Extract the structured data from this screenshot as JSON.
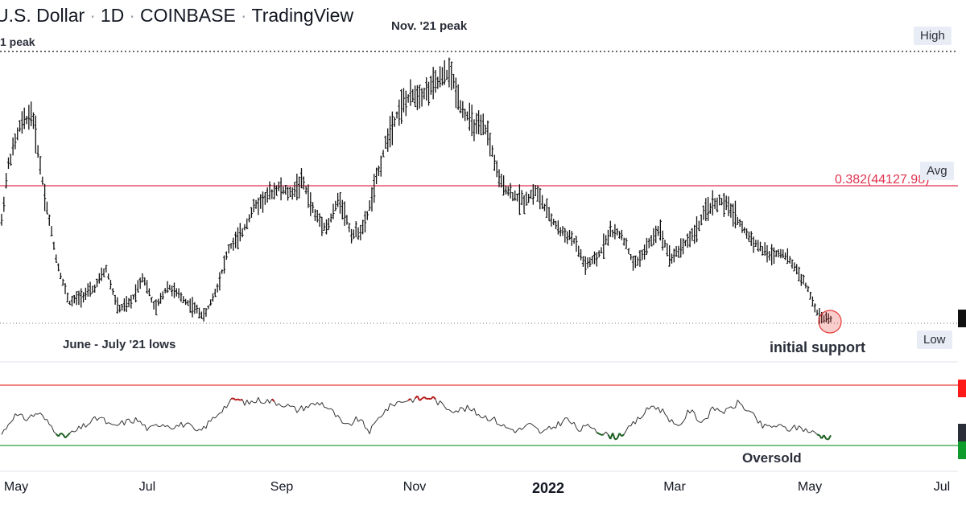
{
  "header": {
    "symbol": "U.S. Dollar",
    "interval": "1D",
    "exchange": "COINBASE",
    "brand": "TradingView"
  },
  "badges": {
    "high": "High",
    "avg": "Avg",
    "low": "Low"
  },
  "annotations": {
    "left_peak": "1 peak",
    "nov_peak": "Nov. '21 peak",
    "lows": "June - July '21 lows",
    "initial_support": "initial support",
    "oversold": "Oversold",
    "fib": "0.382(44127.98)"
  },
  "x_axis_labels": [
    "May",
    "Jul",
    "Sep",
    "Nov",
    "2022",
    "Mar",
    "May",
    "Jul"
  ],
  "colors": {
    "fib_line": "#e0334f",
    "overbought_line": "#e53935",
    "oversold_line": "#2e9e3a",
    "bar": "#111111",
    "tag_red": "#ff1a1a",
    "tag_green": "#109c2c",
    "tag_dark": "#2a2e39",
    "tag_black": "#111111"
  },
  "chart_data": [
    {
      "type": "ohlc",
      "anchors_x": [
        "May",
        "Jul",
        "Sep",
        "Nov",
        "2022",
        "Mar",
        "May"
      ],
      "price_path": [
        [
          0,
          44000
        ],
        [
          1,
          52000
        ],
        [
          3,
          58000
        ],
        [
          5,
          60000
        ],
        [
          7,
          48000
        ],
        [
          9,
          38000
        ],
        [
          11,
          32000
        ],
        [
          13,
          33000
        ],
        [
          15,
          34000
        ],
        [
          17,
          37000
        ],
        [
          19,
          31000
        ],
        [
          21,
          32000
        ],
        [
          23,
          36000
        ],
        [
          25,
          31000
        ],
        [
          27,
          34500
        ],
        [
          29,
          33000
        ],
        [
          31,
          31500
        ],
        [
          33,
          30000
        ],
        [
          35,
          34000
        ],
        [
          37,
          40000
        ],
        [
          39,
          42000
        ],
        [
          41,
          46000
        ],
        [
          43,
          47500
        ],
        [
          45,
          49000
        ],
        [
          47,
          48000
        ],
        [
          49,
          50000
        ],
        [
          51,
          45000
        ],
        [
          53,
          43000
        ],
        [
          55,
          47500
        ],
        [
          57,
          42000
        ],
        [
          59,
          43000
        ],
        [
          61,
          50000
        ],
        [
          63,
          57000
        ],
        [
          65,
          61000
        ],
        [
          67,
          62500
        ],
        [
          69,
          63000
        ],
        [
          71,
          64500
        ],
        [
          73,
          66000
        ],
        [
          75,
          60500
        ],
        [
          77,
          58000
        ],
        [
          79,
          57500
        ],
        [
          81,
          50000
        ],
        [
          83,
          48000
        ],
        [
          85,
          47000
        ],
        [
          87,
          48500
        ],
        [
          89,
          45000
        ],
        [
          91,
          42500
        ],
        [
          93,
          41500
        ],
        [
          95,
          37500
        ],
        [
          97,
          38500
        ],
        [
          99,
          42500
        ],
        [
          101,
          42000
        ],
        [
          103,
          37500
        ],
        [
          105,
          40000
        ],
        [
          107,
          43000
        ],
        [
          109,
          38500
        ],
        [
          111,
          40500
        ],
        [
          113,
          42500
        ],
        [
          115,
          46000
        ],
        [
          117,
          47000
        ],
        [
          119,
          45500
        ],
        [
          121,
          42500
        ],
        [
          123,
          40500
        ],
        [
          125,
          39000
        ],
        [
          127,
          39500
        ],
        [
          129,
          37500
        ],
        [
          131,
          34500
        ],
        [
          133,
          30000
        ],
        [
          135,
          29500
        ]
      ],
      "levels": {
        "high": 69000,
        "fib_0382": 44127.98,
        "low": 29000
      }
    },
    {
      "type": "line",
      "name": "",
      "overbought": 70,
      "oversold": 30,
      "oversold_label": "Oversold",
      "rsi_path": [
        [
          0,
          30
        ],
        [
          2,
          52
        ],
        [
          4,
          48
        ],
        [
          6,
          55
        ],
        [
          8,
          40
        ],
        [
          10,
          26
        ],
        [
          12,
          33
        ],
        [
          14,
          42
        ],
        [
          16,
          50
        ],
        [
          18,
          38
        ],
        [
          20,
          44
        ],
        [
          22,
          47
        ],
        [
          24,
          35
        ],
        [
          26,
          43
        ],
        [
          28,
          39
        ],
        [
          30,
          42
        ],
        [
          32,
          31
        ],
        [
          34,
          45
        ],
        [
          36,
          60
        ],
        [
          38,
          71
        ],
        [
          40,
          66
        ],
        [
          42,
          70
        ],
        [
          44,
          68
        ],
        [
          46,
          65
        ],
        [
          48,
          58
        ],
        [
          50,
          63
        ],
        [
          52,
          67
        ],
        [
          54,
          55
        ],
        [
          56,
          38
        ],
        [
          58,
          48
        ],
        [
          60,
          33
        ],
        [
          62,
          55
        ],
        [
          64,
          66
        ],
        [
          66,
          70
        ],
        [
          68,
          71
        ],
        [
          70,
          73
        ],
        [
          72,
          62
        ],
        [
          74,
          58
        ],
        [
          76,
          60
        ],
        [
          78,
          52
        ],
        [
          80,
          48
        ],
        [
          82,
          38
        ],
        [
          84,
          34
        ],
        [
          86,
          41
        ],
        [
          88,
          31
        ],
        [
          90,
          39
        ],
        [
          92,
          48
        ],
        [
          94,
          35
        ],
        [
          96,
          40
        ],
        [
          98,
          30
        ],
        [
          100,
          27
        ],
        [
          102,
          35
        ],
        [
          104,
          50
        ],
        [
          106,
          64
        ],
        [
          108,
          55
        ],
        [
          110,
          36
        ],
        [
          112,
          58
        ],
        [
          114,
          44
        ],
        [
          116,
          60
        ],
        [
          118,
          56
        ],
        [
          120,
          67
        ],
        [
          122,
          54
        ],
        [
          124,
          38
        ],
        [
          126,
          40
        ],
        [
          128,
          36
        ],
        [
          130,
          38
        ],
        [
          132,
          32
        ],
        [
          134,
          27
        ],
        [
          135,
          28
        ]
      ],
      "ylim": [
        0,
        100
      ]
    }
  ]
}
